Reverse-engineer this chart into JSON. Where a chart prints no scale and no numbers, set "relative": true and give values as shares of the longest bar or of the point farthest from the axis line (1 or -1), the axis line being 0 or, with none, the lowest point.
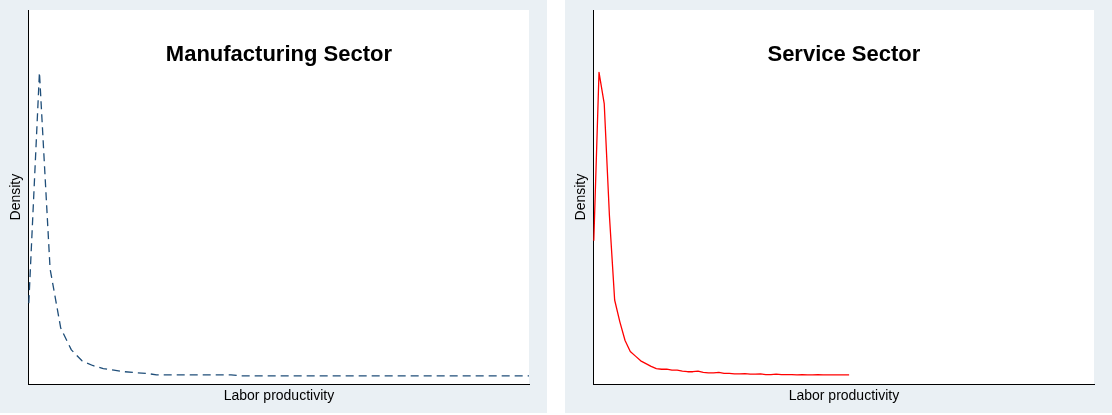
{
  "chart_data": [
    {
      "type": "line",
      "title": "Manufacturing Sector",
      "xlabel": "Labor productivity",
      "ylabel": "Density",
      "relative": true,
      "tick_labels": false,
      "grid": false,
      "legend": false,
      "marker": "none",
      "categories": [
        null,
        null,
        null,
        null,
        null,
        null,
        null,
        null,
        null,
        null,
        null,
        null,
        null,
        null,
        null,
        null,
        null,
        null,
        null,
        null,
        null,
        null,
        null,
        null,
        null,
        null,
        null,
        null,
        null,
        null,
        null,
        null,
        null,
        null,
        null,
        null,
        null,
        null,
        null,
        null,
        null,
        null,
        null,
        null,
        null,
        null,
        null,
        null
      ],
      "series": [
        {
          "color": "#1f4e79",
          "line_style": "dashed",
          "values": [
            0.26,
            1.0,
            0.37,
            0.18,
            0.11,
            0.075,
            0.06,
            0.05,
            0.045,
            0.04,
            0.037,
            0.035,
            0.03,
            0.03,
            0.03,
            0.03,
            0.03,
            0.03,
            0.03,
            0.03,
            0.027,
            0.027,
            0.027,
            0.027,
            0.027,
            0.027,
            0.027,
            0.027,
            0.027,
            0.027,
            0.027,
            0.027,
            0.027,
            0.027,
            0.027,
            0.027,
            0.027,
            0.027,
            0.027,
            0.027,
            0.027,
            0.027,
            0.027,
            0.027,
            0.027,
            0.027,
            0.027,
            0.027
          ]
        }
      ]
    },
    {
      "type": "line",
      "title": "Service Sector",
      "xlabel": "Labor productivity",
      "ylabel": "Density",
      "relative": true,
      "tick_labels": false,
      "grid": false,
      "legend": false,
      "marker": "none",
      "categories": [
        null,
        null,
        null,
        null,
        null,
        null,
        null,
        null,
        null,
        null,
        null,
        null,
        null,
        null,
        null,
        null,
        null,
        null,
        null,
        null,
        null,
        null,
        null,
        null,
        null,
        null,
        null,
        null,
        null,
        null,
        null,
        null,
        null,
        null,
        null,
        null,
        null,
        null,
        null,
        null,
        null,
        null,
        null,
        null,
        null,
        null,
        null,
        null,
        null,
        null,
        null,
        null,
        null,
        null,
        null,
        null,
        null,
        null,
        null,
        null,
        null,
        null,
        null,
        null,
        null,
        null,
        null,
        null,
        null,
        null,
        null,
        null,
        null,
        null,
        null,
        null,
        null,
        null,
        null,
        null,
        null,
        null,
        null,
        null,
        null,
        null,
        null,
        null,
        null,
        null,
        null,
        null,
        null,
        null,
        null,
        null,
        null
      ],
      "series": [
        {
          "color": "#ff0000",
          "line_style": "solid",
          "values": [
            0.46,
            1.0,
            0.9,
            0.54,
            0.27,
            0.2,
            0.14,
            0.105,
            0.09,
            0.075,
            0.066,
            0.057,
            0.05,
            0.048,
            0.048,
            0.045,
            0.045,
            0.042,
            0.04,
            0.04,
            0.042,
            0.038,
            0.036,
            0.036,
            0.038,
            0.035,
            0.035,
            0.033,
            0.033,
            0.034,
            0.032,
            0.032,
            0.033,
            0.031,
            0.031,
            0.032,
            0.031,
            0.031,
            0.031,
            0.03,
            0.031,
            0.03,
            0.03,
            0.031,
            0.03,
            0.03,
            0.03,
            0.03,
            0.03,
            0.03,
            null,
            null,
            null,
            null,
            null,
            null,
            null,
            null,
            null,
            null,
            null,
            null,
            null,
            null,
            null,
            null,
            null,
            null,
            null,
            null,
            null,
            null,
            null,
            null,
            null,
            null,
            null,
            null,
            null,
            null,
            null,
            null,
            null,
            null,
            null,
            null,
            null,
            null,
            null,
            null,
            null,
            null,
            null,
            null,
            null,
            null,
            null
          ]
        }
      ]
    }
  ]
}
